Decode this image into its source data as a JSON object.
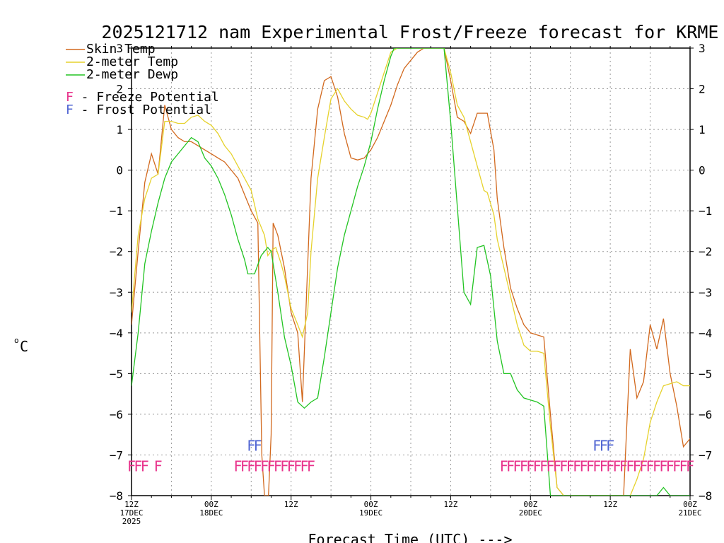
{
  "chart_data": {
    "type": "line",
    "title": "2025121712 nam Experimental Frost/Freeze forecast for KRME",
    "ylabel_unit": "°C",
    "ylabel_degree": "o",
    "ylabel_letter": "C",
    "xlabel": "Forecast Time (UTC) --->",
    "ylim": [
      -8,
      3
    ],
    "xlim_hours": [
      0,
      84
    ],
    "y_ticks": [
      "−8",
      "−7",
      "−6",
      "−5",
      "−4",
      "−3",
      "−2",
      "−1",
      "0",
      "1",
      "2",
      "3"
    ],
    "x_ticks": [
      {
        "hour": 0,
        "line1": "12Z",
        "line2": "17DEC",
        "line3": "2025"
      },
      {
        "hour": 12,
        "line1": "00Z",
        "line2": "18DEC",
        "line3": ""
      },
      {
        "hour": 24,
        "line1": "12Z",
        "line2": "",
        "line3": ""
      },
      {
        "hour": 36,
        "line1": "00Z",
        "line2": "19DEC",
        "line3": ""
      },
      {
        "hour": 48,
        "line1": "12Z",
        "line2": "",
        "line3": ""
      },
      {
        "hour": 60,
        "line1": "00Z",
        "line2": "20DEC",
        "line3": ""
      },
      {
        "hour": 72,
        "line1": "12Z",
        "line2": "",
        "line3": ""
      },
      {
        "hour": 84,
        "line1": "00Z",
        "line2": "21DEC",
        "line3": ""
      }
    ],
    "legend": [
      {
        "label": "Skin Temp",
        "color": "#d2691e"
      },
      {
        "label": "2-meter Temp",
        "color": "#e6d22d"
      },
      {
        "label": "2-meter Dewp",
        "color": "#22c422"
      }
    ],
    "flag_legend": [
      {
        "flag": "F",
        "text": " - Freeze Potential",
        "color": "#e8338c"
      },
      {
        "flag": "F",
        "text": " - Frost Potential",
        "color": "#4f64d2"
      }
    ],
    "series": [
      {
        "name": "Skin Temp",
        "color": "#d2691e",
        "points": [
          [
            0,
            -3.8
          ],
          [
            1,
            -2.0
          ],
          [
            2,
            -0.3
          ],
          [
            3,
            0.4
          ],
          [
            4,
            -0.1
          ],
          [
            5,
            1.6
          ],
          [
            6,
            1.0
          ],
          [
            7,
            0.8
          ],
          [
            8,
            0.7
          ],
          [
            9,
            0.7
          ],
          [
            10,
            0.6
          ],
          [
            11,
            0.5
          ],
          [
            12,
            0.4
          ],
          [
            13,
            0.3
          ],
          [
            14,
            0.2
          ],
          [
            15,
            0.0
          ],
          [
            16,
            -0.2
          ],
          [
            17,
            -0.6
          ],
          [
            18,
            -1.0
          ],
          [
            19,
            -1.3
          ],
          [
            19.6,
            -7.0
          ],
          [
            20,
            -8.0
          ],
          [
            20.6,
            -8.0
          ],
          [
            21,
            -6.5
          ],
          [
            21.3,
            -1.3
          ],
          [
            22,
            -1.6
          ],
          [
            23,
            -2.4
          ],
          [
            24,
            -3.5
          ],
          [
            25,
            -4.0
          ],
          [
            25.7,
            -5.7
          ],
          [
            27,
            -0.2
          ],
          [
            28,
            1.5
          ],
          [
            29,
            2.2
          ],
          [
            30,
            2.3
          ],
          [
            31,
            1.8
          ],
          [
            32,
            0.9
          ],
          [
            33,
            0.3
          ],
          [
            34,
            0.25
          ],
          [
            35,
            0.3
          ],
          [
            36,
            0.5
          ],
          [
            37,
            0.8
          ],
          [
            38,
            1.2
          ],
          [
            39,
            1.6
          ],
          [
            40,
            2.1
          ],
          [
            41,
            2.5
          ],
          [
            42,
            2.7
          ],
          [
            43,
            2.9
          ],
          [
            44,
            3.0
          ],
          [
            47,
            3.0
          ],
          [
            48,
            2.2
          ],
          [
            49,
            1.3
          ],
          [
            50,
            1.2
          ],
          [
            51,
            0.9
          ],
          [
            52,
            1.4
          ],
          [
            53,
            1.4
          ],
          [
            53.5,
            1.4
          ],
          [
            54.5,
            0.5
          ],
          [
            55,
            -0.7
          ],
          [
            56,
            -1.9
          ],
          [
            57,
            -2.9
          ],
          [
            58,
            -3.4
          ],
          [
            59,
            -3.8
          ],
          [
            60,
            -4.0
          ],
          [
            61,
            -4.05
          ],
          [
            62,
            -4.1
          ],
          [
            63,
            -6.0
          ],
          [
            64,
            -7.8
          ],
          [
            65,
            -8.0
          ],
          [
            74,
            -8.0
          ],
          [
            75,
            -4.4
          ],
          [
            76,
            -5.6
          ],
          [
            77,
            -5.2
          ],
          [
            78,
            -3.8
          ],
          [
            79,
            -4.4
          ],
          [
            80,
            -3.65
          ],
          [
            81,
            -5.0
          ],
          [
            82,
            -5.8
          ],
          [
            83,
            -6.8
          ],
          [
            84,
            -6.6
          ]
        ]
      },
      {
        "name": "2-meter Temp",
        "color": "#e6d22d",
        "points": [
          [
            0,
            -3.5
          ],
          [
            1,
            -1.6
          ],
          [
            2,
            -0.7
          ],
          [
            3,
            -0.2
          ],
          [
            4,
            -0.1
          ],
          [
            5,
            1.2
          ],
          [
            6,
            1.2
          ],
          [
            7,
            1.15
          ],
          [
            8,
            1.15
          ],
          [
            9,
            1.3
          ],
          [
            10,
            1.35
          ],
          [
            11,
            1.2
          ],
          [
            12,
            1.1
          ],
          [
            13,
            0.9
          ],
          [
            14,
            0.6
          ],
          [
            15,
            0.4
          ],
          [
            16,
            0.1
          ],
          [
            17,
            -0.2
          ],
          [
            18,
            -0.5
          ],
          [
            19,
            -1.2
          ],
          [
            20,
            -1.6
          ],
          [
            20.5,
            -2.1
          ],
          [
            21.2,
            -1.95
          ],
          [
            21.7,
            -1.9
          ],
          [
            22.5,
            -2.3
          ],
          [
            23,
            -2.6
          ],
          [
            24,
            -3.4
          ],
          [
            25,
            -3.8
          ],
          [
            25.7,
            -4.1
          ],
          [
            26.5,
            -3.5
          ],
          [
            27,
            -2.0
          ],
          [
            28,
            -0.2
          ],
          [
            29,
            0.8
          ],
          [
            30,
            1.75
          ],
          [
            31,
            2.0
          ],
          [
            32,
            1.7
          ],
          [
            33,
            1.5
          ],
          [
            34,
            1.35
          ],
          [
            35,
            1.3
          ],
          [
            35.5,
            1.25
          ],
          [
            36,
            1.4
          ],
          [
            37,
            1.9
          ],
          [
            38,
            2.4
          ],
          [
            39,
            2.9
          ],
          [
            40,
            3.0
          ],
          [
            47,
            3.0
          ],
          [
            48,
            2.4
          ],
          [
            49,
            1.6
          ],
          [
            50,
            1.3
          ],
          [
            51,
            0.7
          ],
          [
            52,
            0.1
          ],
          [
            53,
            -0.5
          ],
          [
            53.5,
            -0.55
          ],
          [
            54.5,
            -1.1
          ],
          [
            55,
            -1.7
          ],
          [
            56,
            -2.4
          ],
          [
            57,
            -3.1
          ],
          [
            58,
            -3.8
          ],
          [
            59,
            -4.3
          ],
          [
            60,
            -4.45
          ],
          [
            61,
            -4.45
          ],
          [
            62,
            -4.5
          ],
          [
            63,
            -6.3
          ],
          [
            64,
            -7.8
          ],
          [
            65,
            -8.0
          ],
          [
            75,
            -8.0
          ],
          [
            76,
            -7.6
          ],
          [
            77,
            -7.1
          ],
          [
            78,
            -6.2
          ],
          [
            79,
            -5.7
          ],
          [
            80,
            -5.3
          ],
          [
            81,
            -5.25
          ],
          [
            82,
            -5.2
          ],
          [
            83,
            -5.3
          ],
          [
            84,
            -5.3
          ]
        ]
      },
      {
        "name": "2-meter Dewp",
        "color": "#22c422",
        "points": [
          [
            0,
            -5.3
          ],
          [
            1,
            -4.0
          ],
          [
            2,
            -2.3
          ],
          [
            3,
            -1.5
          ],
          [
            4,
            -0.8
          ],
          [
            5,
            -0.2
          ],
          [
            6,
            0.2
          ],
          [
            7,
            0.4
          ],
          [
            8,
            0.6
          ],
          [
            9,
            0.8
          ],
          [
            10,
            0.7
          ],
          [
            11,
            0.3
          ],
          [
            12,
            0.1
          ],
          [
            13,
            -0.2
          ],
          [
            14,
            -0.6
          ],
          [
            15,
            -1.1
          ],
          [
            16,
            -1.7
          ],
          [
            17,
            -2.2
          ],
          [
            17.5,
            -2.55
          ],
          [
            18.5,
            -2.55
          ],
          [
            19.5,
            -2.1
          ],
          [
            20.5,
            -1.9
          ],
          [
            21,
            -2.0
          ],
          [
            22,
            -3.0
          ],
          [
            23,
            -4.1
          ],
          [
            24,
            -4.8
          ],
          [
            25,
            -5.7
          ],
          [
            26,
            -5.85
          ],
          [
            27,
            -5.7
          ],
          [
            28,
            -5.6
          ],
          [
            29,
            -4.6
          ],
          [
            30,
            -3.5
          ],
          [
            31,
            -2.4
          ],
          [
            32,
            -1.6
          ],
          [
            33,
            -1.0
          ],
          [
            34,
            -0.4
          ],
          [
            35,
            0.1
          ],
          [
            36,
            0.7
          ],
          [
            37,
            1.5
          ],
          [
            38,
            2.2
          ],
          [
            39,
            2.8
          ],
          [
            39.5,
            3.0
          ],
          [
            47,
            3.0
          ],
          [
            48,
            1.2
          ],
          [
            49,
            -0.9
          ],
          [
            50,
            -3.0
          ],
          [
            51,
            -3.3
          ],
          [
            52,
            -1.9
          ],
          [
            53,
            -1.85
          ],
          [
            54,
            -2.6
          ],
          [
            55,
            -4.2
          ],
          [
            56,
            -5.0
          ],
          [
            57,
            -5.0
          ],
          [
            58,
            -5.4
          ],
          [
            59,
            -5.6
          ],
          [
            60,
            -5.65
          ],
          [
            61,
            -5.7
          ],
          [
            62,
            -5.8
          ],
          [
            63,
            -8.0
          ],
          [
            79,
            -8.0
          ],
          [
            80,
            -7.8
          ],
          [
            81,
            -8.0
          ],
          [
            84,
            -8.0
          ]
        ]
      }
    ],
    "freeze_flags": {
      "color": "#e8338c",
      "hours": [
        0,
        1,
        2,
        4,
        16,
        17,
        18,
        19,
        20,
        21,
        22,
        23,
        24,
        25,
        26,
        27,
        56,
        57,
        58,
        59,
        60,
        61,
        62,
        63,
        64,
        65,
        66,
        67,
        68,
        69,
        70,
        71,
        72,
        73,
        74,
        75,
        76,
        77,
        78,
        79,
        80,
        81,
        82,
        83,
        84
      ]
    },
    "frost_flags": {
      "color": "#4f64d2",
      "hours": [
        18,
        19,
        70,
        71,
        72
      ]
    },
    "flag_letter": "F"
  }
}
